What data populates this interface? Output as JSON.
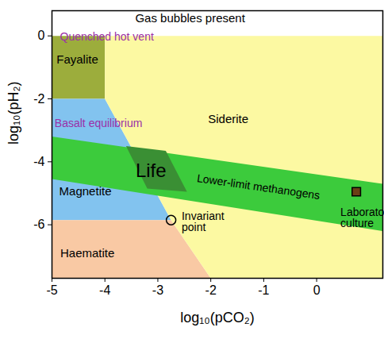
{
  "chart_data": {
    "type": "area",
    "x_label": "log₁₀(pCO₂)",
    "y_label": "log₁₀(pH₂)",
    "xlim": [
      -5,
      1.25
    ],
    "ylim": [
      -7.7,
      0.8
    ],
    "xticks": [
      -5,
      -4,
      -3,
      -2,
      -1,
      0
    ],
    "yticks": [
      -6,
      -4,
      -2,
      0
    ],
    "regions": [
      {
        "name": "Gas bubbles present",
        "color": "#ffffff",
        "x": [
          -5,
          1.25,
          1.25,
          -5
        ],
        "y": [
          0,
          0,
          0.8,
          0.8
        ],
        "label_x": -2.39,
        "label_y": 0.55
      },
      {
        "name": "Fayalite",
        "color": "#9cad3c",
        "x": [
          -5,
          -4,
          -4,
          -5
        ],
        "y": [
          0,
          0,
          -2,
          -2
        ],
        "label_x": -4.52,
        "label_y": -0.76
      },
      {
        "name": "Magnetite",
        "color": "#82c3ef",
        "x": [
          -5,
          -4,
          -2.75,
          -5
        ],
        "y": [
          -2,
          -2,
          -5.85,
          -5.85
        ],
        "label_x": -4.37,
        "label_y": -4.94
      },
      {
        "name": "Haematite",
        "color": "#f9c9a4",
        "x": [
          -5,
          -2.75,
          -2,
          -5
        ],
        "y": [
          -5.85,
          -5.85,
          -7.7,
          -7.7
        ],
        "label_x": -4.33,
        "label_y": -6.9
      },
      {
        "name": "Siderite",
        "color": "#fcf9a2",
        "x": [
          -4,
          1.25,
          1.25,
          -2,
          -2.75,
          -4
        ],
        "y": [
          0,
          0,
          -7.7,
          -7.7,
          -5.85,
          -2
        ],
        "label_x": -1.67,
        "label_y": -2.66
      },
      {
        "name": "Lower-limit methanogens",
        "color": "#3ccb3c",
        "x": [
          -5,
          1.25,
          1.25,
          -5
        ],
        "y": [
          -3.2,
          -4.7,
          -6.2,
          -4.55
        ],
        "label_x": -1.1,
        "label_y": -4.8
      },
      {
        "name": "Life",
        "color": "#3a8f34",
        "x": [
          -3.6,
          -2.85,
          -2.45,
          -3.2
        ],
        "y": [
          -3.5,
          -3.65,
          -4.95,
          -4.85
        ],
        "label_x": -3.13,
        "label_y": -4.3
      }
    ],
    "points": [
      {
        "name": "Invariant\npoint",
        "x": -2.75,
        "y": -5.85,
        "marker": "circle",
        "label_x": -2.55,
        "label_y": -5.92
      },
      {
        "name": "Laboratory\nculture",
        "x": 0.75,
        "y": -4.95,
        "marker": "square",
        "color": "#6b3f16",
        "label_x": 0.45,
        "label_y": -5.78
      }
    ],
    "annotations": [
      {
        "text": "Quenched hot vent",
        "x": -4.85,
        "y": -0.03,
        "color": "#9b30a8"
      },
      {
        "text": "Basalt equilibrium",
        "x": -4.95,
        "y": -2.78,
        "color": "#9b30a8"
      }
    ]
  }
}
